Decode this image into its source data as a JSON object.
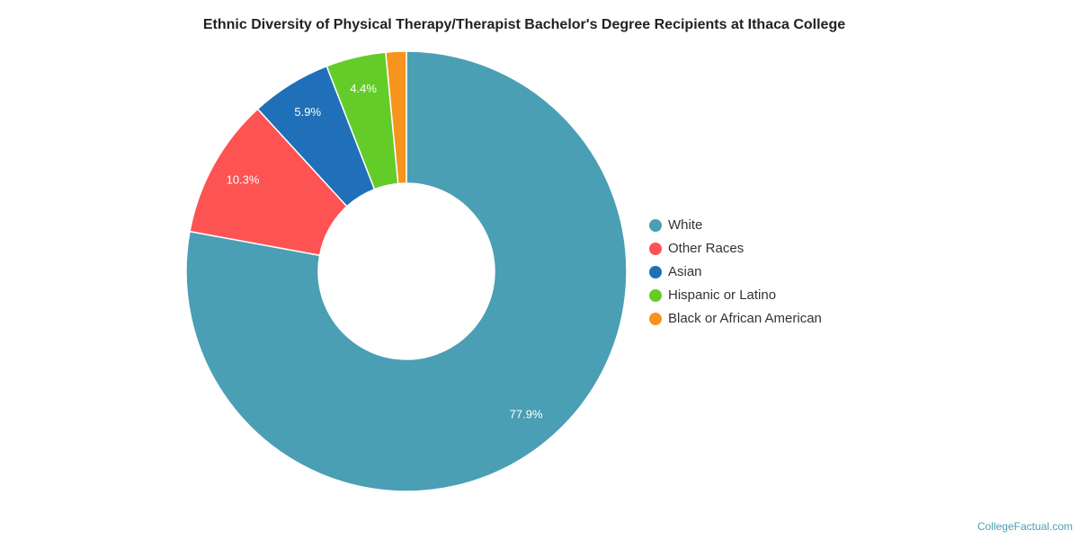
{
  "chart_data": {
    "type": "donut",
    "title": "Ethnic Diversity of Physical Therapy/Therapist Bachelor's Degree Recipients at Ithaca College",
    "categories": [
      "White",
      "Other Races",
      "Asian",
      "Hispanic or Latino",
      "Black or African American"
    ],
    "values": [
      77.9,
      10.3,
      5.9,
      4.4,
      1.5
    ],
    "value_labels": [
      "77.9%",
      "10.3%",
      "5.9%",
      "4.4%",
      null
    ],
    "colors": [
      "#4a9fb4",
      "#fd5352",
      "#1f70b8",
      "#64cc29",
      "#f7941d"
    ],
    "legend": "right",
    "source": "CollegeFactual.com"
  }
}
